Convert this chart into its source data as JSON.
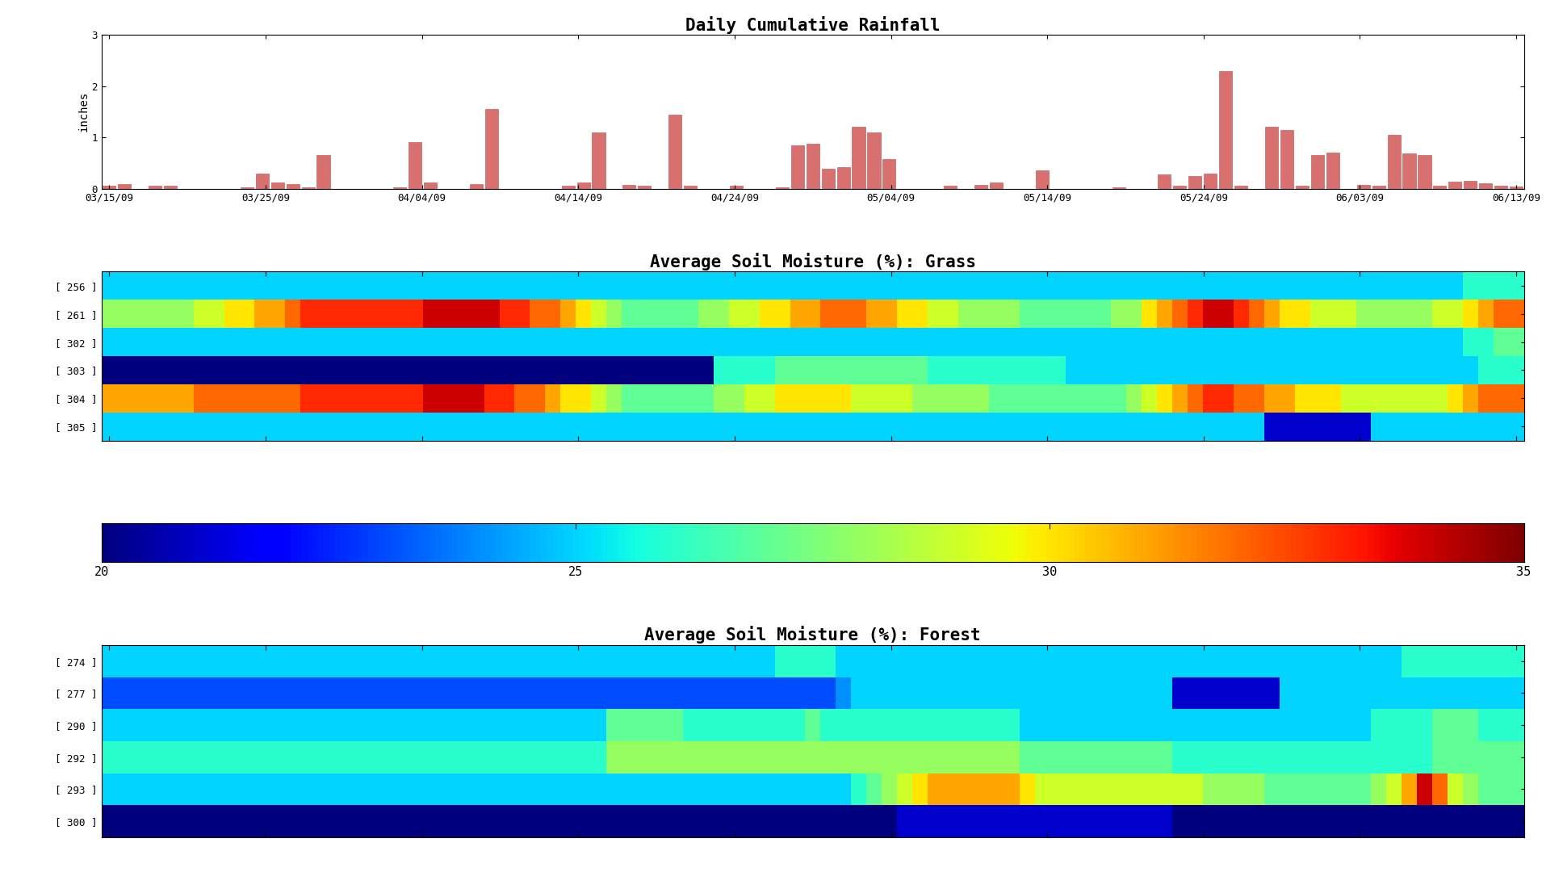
{
  "title_rainfall": "Daily Cumulative Rainfall",
  "ylabel_rainfall": "inches",
  "ylim_rainfall": [
    0,
    3
  ],
  "yticks_rainfall": [
    0,
    1,
    2,
    3
  ],
  "xtick_labels": [
    "03/15/09",
    "03/25/09",
    "04/04/09",
    "04/14/09",
    "04/24/09",
    "05/04/09",
    "05/14/09",
    "05/24/09",
    "06/03/09",
    "06/13/09"
  ],
  "n_days": 93,
  "rainfall_values": [
    0.05,
    0.08,
    0.0,
    0.05,
    0.06,
    0.0,
    0.0,
    0.0,
    0.0,
    0.02,
    0.3,
    0.12,
    0.08,
    0.02,
    0.65,
    0.0,
    0.0,
    0.0,
    0.0,
    0.03,
    0.9,
    0.12,
    0.0,
    0.0,
    0.08,
    1.55,
    0.0,
    0.0,
    0.0,
    0.0,
    0.05,
    0.12,
    1.1,
    0.0,
    0.07,
    0.05,
    0.0,
    1.45,
    0.05,
    0.0,
    0.0,
    0.06,
    0.0,
    0.0,
    0.02,
    0.85,
    0.88,
    0.38,
    0.42,
    1.2,
    1.1,
    0.57,
    0.0,
    0.0,
    0.0,
    0.05,
    0.0,
    0.07,
    0.12,
    0.0,
    0.0,
    0.35,
    0.0,
    0.0,
    0.0,
    0.0,
    0.02,
    0.0,
    0.0,
    0.28,
    0.06,
    0.25,
    0.3,
    2.3,
    0.05,
    0.0,
    1.2,
    1.15,
    0.05,
    0.65,
    0.7,
    0.0,
    0.07,
    0.05,
    1.05,
    0.68,
    0.65,
    0.05,
    0.14,
    0.15,
    0.1,
    0.05,
    0.04
  ],
  "bar_color": "#d97070",
  "bar_edge_color": "#b05050",
  "title_grass": "Average Soil Moisture (%): Grass",
  "grass_ylabels": [
    "[ 256 ]",
    "[ 261 ]",
    "[ 302 ]",
    "[ 303 ]",
    "[ 304 ]",
    "[ 305 ]"
  ],
  "title_forest": "Average Soil Moisture (%): Forest",
  "forest_ylabels": [
    "[ 274 ]",
    "[ 277 ]",
    "[ 290 ]",
    "[ 292 ]",
    "[ 293 ]",
    "[ 300 ]"
  ],
  "cmap_label_ticks": [
    20,
    25,
    30,
    35
  ],
  "vmin": 20,
  "vmax": 35,
  "grass_data": [
    [
      25,
      25,
      25,
      25,
      25,
      25,
      25,
      25,
      25,
      25,
      25,
      25,
      25,
      25,
      25,
      25,
      25,
      25,
      25,
      25,
      25,
      25,
      25,
      25,
      25,
      25,
      25,
      25,
      25,
      25,
      25,
      25,
      25,
      25,
      25,
      25,
      25,
      25,
      25,
      25,
      25,
      25,
      25,
      25,
      25,
      25,
      25,
      25,
      25,
      25,
      25,
      25,
      25,
      25,
      25,
      25,
      25,
      25,
      25,
      25,
      25,
      25,
      25,
      25,
      25,
      25,
      25,
      25,
      25,
      25,
      25,
      25,
      25,
      25,
      25,
      25,
      25,
      25,
      25,
      25,
      25,
      25,
      25,
      25,
      25,
      25,
      25,
      25,
      25,
      26,
      26,
      26,
      26
    ],
    [
      28,
      28,
      28,
      28,
      28,
      28,
      29,
      29,
      30,
      30,
      31,
      31,
      32,
      33,
      33,
      33,
      33,
      33,
      33,
      33,
      33,
      34,
      34,
      34,
      34,
      34,
      33,
      33,
      32,
      32,
      31,
      30,
      29,
      28,
      27,
      27,
      27,
      27,
      27,
      28,
      28,
      29,
      29,
      30,
      30,
      31,
      31,
      32,
      32,
      32,
      31,
      31,
      30,
      30,
      29,
      29,
      28,
      28,
      28,
      28,
      27,
      27,
      27,
      27,
      27,
      27,
      28,
      28,
      30,
      31,
      32,
      33,
      34,
      34,
      33,
      32,
      31,
      30,
      30,
      29,
      29,
      29,
      28,
      28,
      28,
      28,
      28,
      29,
      29,
      30,
      31,
      32,
      32
    ],
    [
      25,
      25,
      25,
      25,
      25,
      25,
      25,
      25,
      25,
      25,
      25,
      25,
      25,
      25,
      25,
      25,
      25,
      25,
      25,
      25,
      25,
      25,
      25,
      25,
      25,
      25,
      25,
      25,
      25,
      25,
      25,
      25,
      25,
      25,
      25,
      25,
      25,
      25,
      25,
      25,
      25,
      25,
      25,
      25,
      25,
      25,
      25,
      25,
      25,
      25,
      25,
      25,
      25,
      25,
      25,
      25,
      25,
      25,
      25,
      25,
      25,
      25,
      25,
      25,
      25,
      25,
      25,
      25,
      25,
      25,
      25,
      25,
      25,
      25,
      25,
      25,
      25,
      25,
      25,
      25,
      25,
      25,
      25,
      25,
      25,
      25,
      25,
      25,
      25,
      26,
      26,
      27,
      27
    ],
    [
      20,
      20,
      20,
      20,
      20,
      20,
      20,
      20,
      20,
      20,
      20,
      20,
      20,
      20,
      20,
      20,
      20,
      20,
      20,
      20,
      20,
      20,
      20,
      20,
      20,
      20,
      20,
      20,
      20,
      20,
      20,
      20,
      20,
      20,
      20,
      20,
      20,
      20,
      20,
      20,
      26,
      26,
      26,
      26,
      27,
      27,
      27,
      27,
      27,
      27,
      27,
      27,
      27,
      27,
      26,
      26,
      26,
      26,
      26,
      26,
      26,
      26,
      26,
      25,
      25,
      25,
      25,
      25,
      25,
      25,
      25,
      25,
      25,
      25,
      25,
      25,
      25,
      25,
      25,
      25,
      25,
      25,
      25,
      25,
      25,
      25,
      25,
      25,
      25,
      25,
      26,
      26,
      26
    ],
    [
      31,
      31,
      31,
      31,
      31,
      31,
      32,
      32,
      32,
      32,
      32,
      32,
      32,
      33,
      33,
      33,
      33,
      33,
      33,
      33,
      33,
      34,
      34,
      34,
      34,
      33,
      33,
      32,
      32,
      31,
      30,
      30,
      29,
      28,
      27,
      27,
      27,
      27,
      27,
      27,
      28,
      28,
      29,
      29,
      30,
      30,
      30,
      30,
      30,
      29,
      29,
      29,
      29,
      28,
      28,
      28,
      28,
      28,
      27,
      27,
      27,
      27,
      27,
      27,
      27,
      27,
      27,
      28,
      29,
      30,
      31,
      32,
      33,
      33,
      32,
      32,
      31,
      31,
      30,
      30,
      30,
      29,
      29,
      29,
      29,
      29,
      29,
      29,
      30,
      31,
      32,
      32,
      32
    ],
    [
      25,
      25,
      25,
      25,
      25,
      25,
      25,
      25,
      25,
      25,
      25,
      25,
      25,
      25,
      25,
      25,
      25,
      25,
      25,
      25,
      25,
      25,
      25,
      25,
      25,
      25,
      25,
      25,
      25,
      25,
      25,
      25,
      25,
      25,
      25,
      25,
      25,
      25,
      25,
      25,
      25,
      25,
      25,
      25,
      25,
      25,
      25,
      25,
      25,
      25,
      25,
      25,
      25,
      25,
      25,
      25,
      25,
      25,
      25,
      25,
      25,
      25,
      25,
      25,
      25,
      25,
      25,
      25,
      25,
      25,
      25,
      25,
      25,
      25,
      25,
      25,
      21,
      21,
      21,
      21,
      21,
      21,
      21,
      25,
      25,
      25,
      25,
      25,
      25,
      25,
      25,
      25,
      25
    ]
  ],
  "forest_data": [
    [
      25,
      25,
      25,
      25,
      25,
      25,
      25,
      25,
      25,
      25,
      25,
      25,
      25,
      25,
      25,
      25,
      25,
      25,
      25,
      25,
      25,
      25,
      25,
      25,
      25,
      25,
      25,
      25,
      25,
      25,
      25,
      25,
      25,
      25,
      25,
      25,
      25,
      25,
      25,
      25,
      25,
      25,
      25,
      25,
      26,
      26,
      26,
      26,
      25,
      25,
      25,
      25,
      25,
      25,
      25,
      25,
      25,
      25,
      25,
      25,
      25,
      25,
      25,
      25,
      25,
      25,
      25,
      25,
      25,
      25,
      25,
      25,
      25,
      25,
      25,
      25,
      25,
      25,
      25,
      25,
      25,
      25,
      25,
      25,
      25,
      26,
      26,
      26,
      26,
      26,
      26,
      26,
      26
    ],
    [
      23,
      23,
      23,
      23,
      23,
      23,
      23,
      23,
      23,
      23,
      23,
      23,
      23,
      23,
      23,
      23,
      23,
      23,
      23,
      23,
      23,
      23,
      23,
      23,
      23,
      23,
      23,
      23,
      23,
      23,
      23,
      23,
      23,
      23,
      23,
      23,
      23,
      23,
      23,
      23,
      23,
      23,
      23,
      23,
      23,
      23,
      23,
      23,
      24,
      25,
      25,
      25,
      25,
      25,
      25,
      25,
      25,
      25,
      25,
      25,
      25,
      25,
      25,
      25,
      25,
      25,
      25,
      25,
      25,
      25,
      21,
      21,
      21,
      21,
      21,
      21,
      21,
      25,
      25,
      25,
      25,
      25,
      25,
      25,
      25,
      25,
      25,
      25,
      25,
      25,
      25,
      25,
      25
    ],
    [
      25,
      25,
      25,
      25,
      25,
      25,
      25,
      25,
      25,
      25,
      25,
      25,
      25,
      25,
      25,
      25,
      25,
      25,
      25,
      25,
      25,
      25,
      25,
      25,
      25,
      25,
      25,
      25,
      25,
      25,
      25,
      25,
      25,
      27,
      27,
      27,
      27,
      27,
      26,
      26,
      26,
      26,
      26,
      26,
      26,
      26,
      27,
      26,
      26,
      26,
      26,
      26,
      26,
      26,
      26,
      26,
      26,
      26,
      26,
      26,
      25,
      25,
      25,
      25,
      25,
      25,
      25,
      25,
      25,
      25,
      25,
      25,
      25,
      25,
      25,
      25,
      25,
      25,
      25,
      25,
      25,
      25,
      25,
      26,
      26,
      26,
      26,
      27,
      27,
      27,
      26,
      26,
      26
    ],
    [
      26,
      26,
      26,
      26,
      26,
      26,
      26,
      26,
      26,
      26,
      26,
      26,
      26,
      26,
      26,
      26,
      26,
      26,
      26,
      26,
      26,
      26,
      26,
      26,
      26,
      26,
      26,
      26,
      26,
      26,
      26,
      26,
      26,
      28,
      28,
      28,
      28,
      28,
      28,
      28,
      28,
      28,
      28,
      28,
      28,
      28,
      28,
      28,
      28,
      28,
      28,
      28,
      28,
      28,
      28,
      28,
      28,
      28,
      28,
      28,
      27,
      27,
      27,
      27,
      27,
      27,
      27,
      27,
      27,
      27,
      26,
      26,
      26,
      26,
      26,
      26,
      26,
      26,
      26,
      26,
      26,
      26,
      26,
      26,
      26,
      26,
      26,
      27,
      27,
      27,
      27,
      27,
      27
    ],
    [
      25,
      25,
      25,
      25,
      25,
      25,
      25,
      25,
      25,
      25,
      25,
      25,
      25,
      25,
      25,
      25,
      25,
      25,
      25,
      25,
      25,
      25,
      25,
      25,
      25,
      25,
      25,
      25,
      25,
      25,
      25,
      25,
      25,
      25,
      25,
      25,
      25,
      25,
      25,
      25,
      25,
      25,
      25,
      25,
      25,
      25,
      25,
      25,
      25,
      26,
      27,
      28,
      29,
      30,
      31,
      31,
      31,
      31,
      31,
      31,
      30,
      29,
      29,
      29,
      29,
      29,
      29,
      29,
      29,
      29,
      29,
      29,
      28,
      28,
      28,
      28,
      27,
      27,
      27,
      27,
      27,
      27,
      27,
      28,
      29,
      31,
      34,
      32,
      29,
      28,
      27,
      27,
      27
    ],
    [
      20,
      20,
      20,
      20,
      20,
      20,
      20,
      20,
      20,
      20,
      20,
      20,
      20,
      20,
      20,
      20,
      20,
      20,
      20,
      20,
      20,
      20,
      20,
      20,
      20,
      20,
      20,
      20,
      20,
      20,
      20,
      20,
      20,
      20,
      20,
      20,
      20,
      20,
      20,
      20,
      20,
      20,
      20,
      20,
      20,
      20,
      20,
      20,
      20,
      20,
      20,
      20,
      21,
      21,
      21,
      21,
      21,
      21,
      21,
      21,
      21,
      21,
      21,
      21,
      21,
      21,
      21,
      21,
      21,
      21,
      20,
      20,
      20,
      20,
      20,
      20,
      20,
      20,
      20,
      20,
      20,
      20,
      20,
      20,
      20,
      20,
      20,
      20,
      20,
      20,
      20,
      20,
      20
    ]
  ]
}
